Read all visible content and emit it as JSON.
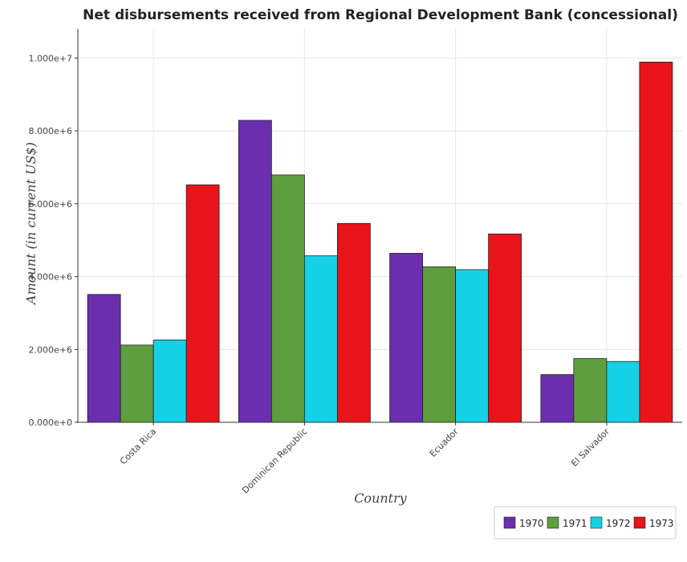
{
  "chart_data": {
    "type": "bar",
    "title": "Net disbursements received from Regional Development Bank (concessional)",
    "xlabel": "Country",
    "ylabel": "Amount (in current US$)",
    "categories": [
      "Costa Rica",
      "Dominican Republic",
      "Ecuador",
      "El Salvador"
    ],
    "series": [
      {
        "name": "1970",
        "color": "#6a2eaf",
        "values": [
          3510000,
          8290000,
          4640000,
          1310000
        ]
      },
      {
        "name": "1971",
        "color": "#5e9e3e",
        "values": [
          2120000,
          6790000,
          4270000,
          1750000
        ]
      },
      {
        "name": "1972",
        "color": "#14d1e6",
        "values": [
          2260000,
          4570000,
          4190000,
          1670000
        ]
      },
      {
        "name": "1973",
        "color": "#e8141a",
        "values": [
          6520000,
          5460000,
          5170000,
          9890000
        ]
      }
    ],
    "ylim": [
      0,
      10800000
    ],
    "yticks": [
      0,
      2000000,
      4000000,
      6000000,
      8000000,
      10000000
    ],
    "ytick_labels": [
      "0.000e+0",
      "2.000e+6",
      "4.000e+6",
      "6.000e+6",
      "8.000e+6",
      "1.000e+7"
    ],
    "grid": true,
    "legend_position": "bottom-right"
  }
}
